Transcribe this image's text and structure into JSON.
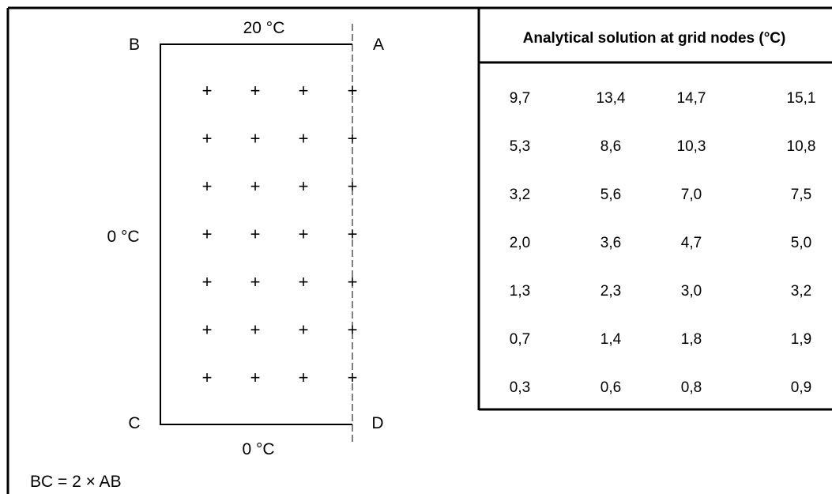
{
  "diagram": {
    "corners": {
      "b": "B",
      "a": "A",
      "c": "C",
      "d": "D"
    },
    "top_temperature": "20 °C",
    "left_temperature": "0 °C",
    "bottom_temperature": "0 °C",
    "relation": "BC = 2 × AB",
    "node_marker": "+",
    "grid": {
      "rows": 7,
      "columns": 4
    }
  },
  "table": {
    "title": "Analytical solution at grid nodes (°C)",
    "rows": [
      [
        "9,7",
        "13,4",
        "14,7",
        "15,1"
      ],
      [
        "5,3",
        "8,6",
        "10,3",
        "10,8"
      ],
      [
        "3,2",
        "5,6",
        "7,0",
        "7,5"
      ],
      [
        "2,0",
        "3,6",
        "4,7",
        "5,0"
      ],
      [
        "1,3",
        "2,3",
        "3,0",
        "3,2"
      ],
      [
        "0,7",
        "1,4",
        "1,8",
        "1,9"
      ],
      [
        "0,3",
        "0,6",
        "0,8",
        "0,9"
      ]
    ]
  }
}
